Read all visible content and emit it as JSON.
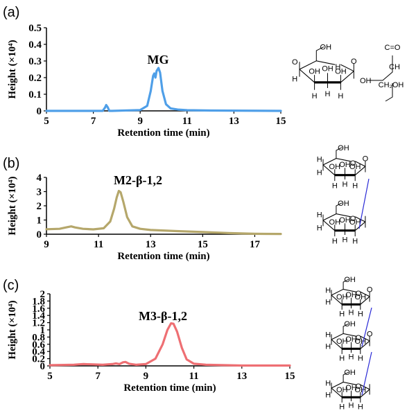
{
  "colors": {
    "a": "#4f9fe8",
    "b": "#b5a76b",
    "c": "#ee6f73",
    "axis": "#000000",
    "linkage": "#2a2ad6"
  },
  "chart_data": [
    {
      "panel": "(a)",
      "type": "line",
      "ylabel": "Height (×10⁴)",
      "xlabel": "Retention time (min)",
      "xlim": [
        5,
        15
      ],
      "ylim": [
        0,
        0.5
      ],
      "xticks": [
        "5",
        "7",
        "9",
        "11",
        "13",
        "15"
      ],
      "yticks": [
        "0",
        "0.1",
        "0.2",
        "0.3",
        "0.4",
        "0.5"
      ],
      "peak_label": "MG",
      "series": [
        {
          "name": "MG",
          "x": [
            5.0,
            7.4,
            7.5,
            7.55,
            7.62,
            7.68,
            7.8,
            9.0,
            9.3,
            9.45,
            9.55,
            9.6,
            9.65,
            9.7,
            9.78,
            9.85,
            9.95,
            10.1,
            10.3,
            10.6,
            11.0,
            12.0,
            15.0
          ],
          "y": [
            0.0,
            0.0,
            0.02,
            0.035,
            0.02,
            0.0,
            0.0,
            0.005,
            0.03,
            0.12,
            0.21,
            0.225,
            0.2,
            0.24,
            0.258,
            0.23,
            0.12,
            0.04,
            0.015,
            0.008,
            0.004,
            0.002,
            0.0
          ]
        }
      ],
      "structure": {
        "labels": [
          "OH",
          "H",
          "O",
          "H",
          "OH",
          "H",
          "OH",
          "H",
          "OH",
          "H",
          "O",
          "OH",
          "C=O",
          "CH",
          "CH₂OH"
        ]
      }
    },
    {
      "panel": "(b)",
      "type": "line",
      "ylabel": "Height (×10⁴)",
      "xlabel": "Retention time (min)",
      "xlim": [
        9,
        18
      ],
      "ylim": [
        0,
        4
      ],
      "xticks": [
        "9",
        "11",
        "13",
        "15",
        "17"
      ],
      "yticks": [
        "0",
        "1",
        "2",
        "3",
        "4"
      ],
      "peak_label": "M2-β-1,2",
      "series": [
        {
          "name": "M2-β-1,2",
          "x": [
            9.0,
            9.5,
            9.8,
            9.95,
            10.1,
            10.4,
            10.8,
            11.2,
            11.45,
            11.6,
            11.7,
            11.78,
            11.85,
            11.95,
            12.1,
            12.3,
            12.6,
            13.0,
            14.0,
            15.0,
            16.0,
            17.0,
            18.0
          ],
          "y": [
            0.35,
            0.38,
            0.5,
            0.55,
            0.48,
            0.38,
            0.34,
            0.42,
            0.9,
            1.8,
            2.6,
            3.05,
            2.95,
            2.3,
            1.2,
            0.55,
            0.38,
            0.3,
            0.22,
            0.15,
            0.08,
            0.03,
            0.02
          ]
        }
      ],
      "structure": {
        "labels": [
          "OH",
          "O",
          "H",
          "H",
          "OH",
          "H",
          "OH",
          "H",
          "OH",
          "H",
          "O",
          "OH",
          "O",
          "H",
          "H",
          "OH",
          "H",
          "OH",
          "H",
          "OH",
          "H"
        ]
      }
    },
    {
      "panel": "(c)",
      "type": "line",
      "ylabel": "Height (×10⁴)",
      "xlabel": "Retention time (min)",
      "xlim": [
        5,
        15
      ],
      "ylim": [
        0,
        2
      ],
      "xticks": [
        "5",
        "7",
        "9",
        "11",
        "13",
        "15"
      ],
      "yticks": [
        "0",
        "0.2",
        "0.4",
        "0.6",
        "0.8",
        "1",
        "1.2",
        "1.4",
        "1.6",
        "1.8",
        "2"
      ],
      "peak_label": "M3-β-1,2",
      "series": [
        {
          "name": "M3-β-1,2",
          "x": [
            5.0,
            6.0,
            6.4,
            6.8,
            7.2,
            7.6,
            7.75,
            7.9,
            8.05,
            8.15,
            8.3,
            8.6,
            9.0,
            9.4,
            9.7,
            9.9,
            10.05,
            10.15,
            10.3,
            10.5,
            10.7,
            11.0,
            11.5,
            13.0,
            15.0
          ],
          "y": [
            0.02,
            0.03,
            0.05,
            0.04,
            0.03,
            0.05,
            0.07,
            0.05,
            0.1,
            0.11,
            0.06,
            0.03,
            0.05,
            0.2,
            0.6,
            1.0,
            1.18,
            1.17,
            0.95,
            0.5,
            0.18,
            0.06,
            0.03,
            0.01,
            0.01
          ]
        }
      ],
      "structure": {
        "labels": [
          "OH",
          "O",
          "H",
          "H",
          "OH",
          "H",
          "OH",
          "H",
          "OH",
          "H",
          "O",
          "OH",
          "O",
          "H",
          "H",
          "OH",
          "H",
          "OH",
          "H",
          "OH",
          "H",
          "O",
          "OH",
          "O",
          "H",
          "H",
          "OH",
          "H",
          "OH",
          "H",
          "OH",
          "H"
        ]
      }
    }
  ]
}
